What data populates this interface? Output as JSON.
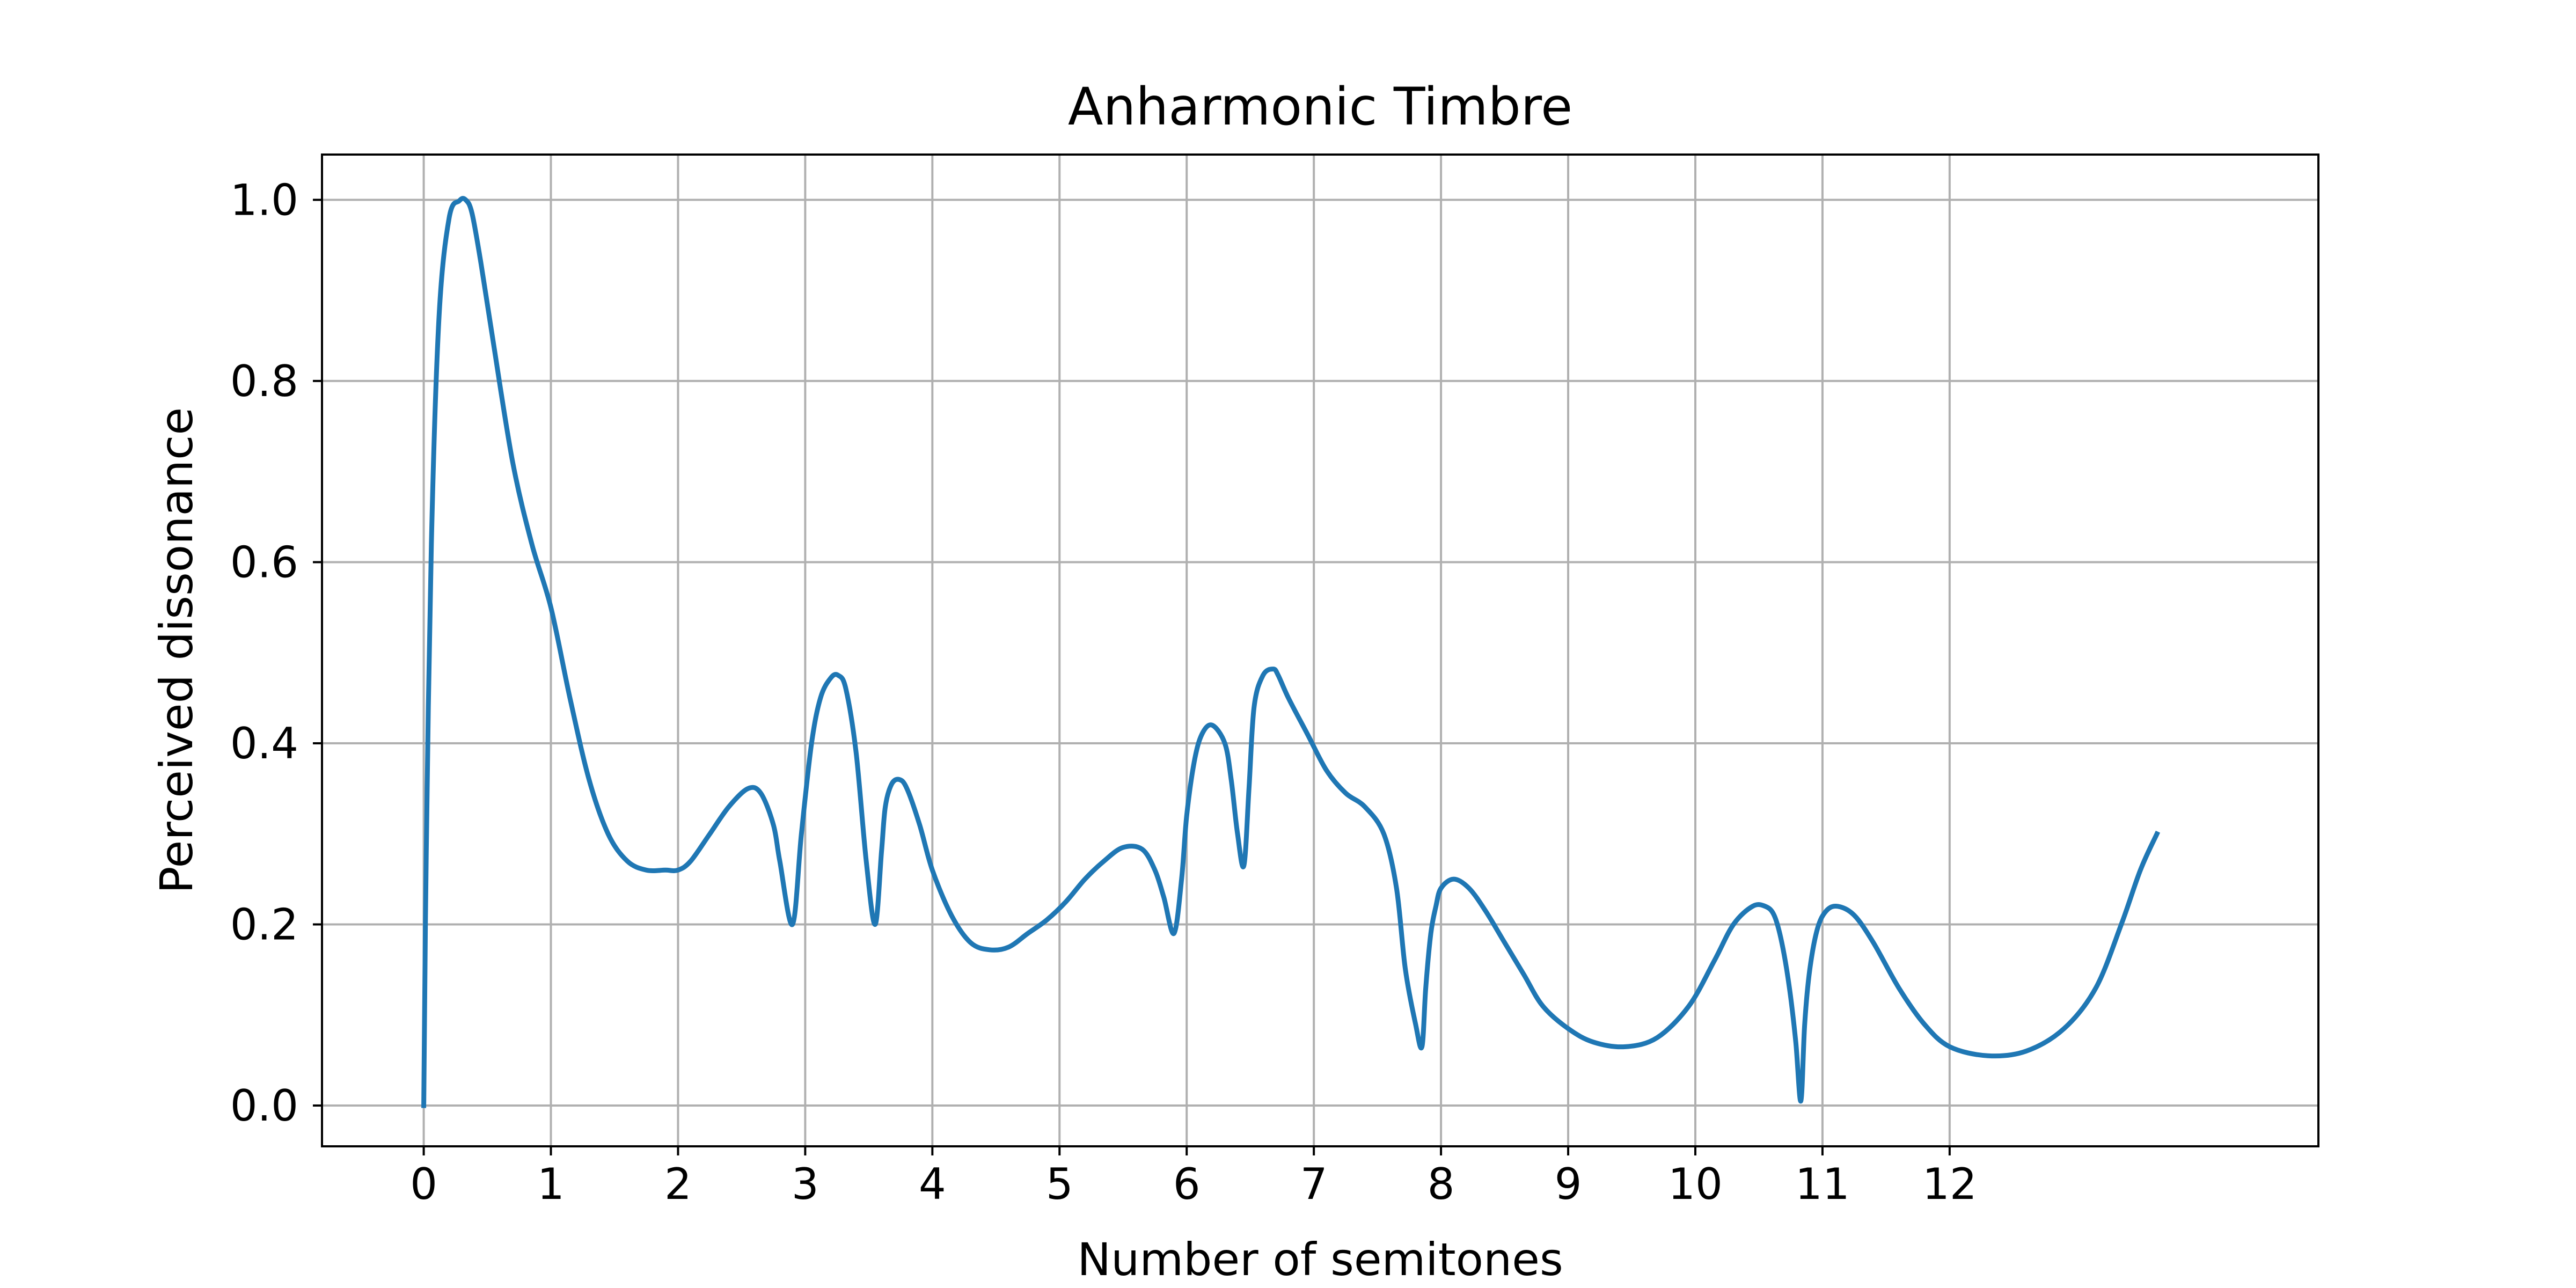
{
  "chart_data": {
    "type": "line",
    "title": "Anharmonic Timbre",
    "xlabel": "Number of semitones",
    "ylabel": "Perceived dissonance",
    "xlim": [
      -0.8,
      14.9
    ],
    "ylim": [
      -0.045,
      1.05
    ],
    "grid": true,
    "xticks": [
      0,
      1,
      2,
      3,
      4,
      5,
      6,
      7,
      8,
      9,
      10,
      11,
      12
    ],
    "xtick_labels": [
      "0",
      "1",
      "2",
      "3",
      "4",
      "5",
      "6",
      "7",
      "8",
      "9",
      "10",
      "11",
      "12"
    ],
    "yticks": [
      0.0,
      0.2,
      0.4,
      0.6,
      0.8,
      1.0
    ],
    "ytick_labels": [
      "0.0",
      "0.2",
      "0.4",
      "0.6",
      "0.8",
      "1.0"
    ],
    "line_color": "#1f77b4",
    "series": [
      {
        "x": [
          0.0,
          0.02,
          0.06,
          0.12,
          0.2,
          0.28,
          0.33,
          0.38,
          0.45,
          0.55,
          0.7,
          0.85,
          1.0,
          1.15,
          1.3,
          1.45,
          1.6,
          1.75,
          1.9,
          2.0,
          2.1,
          2.25,
          2.4,
          2.55,
          2.65,
          2.75,
          2.8,
          2.9,
          2.97,
          3.05,
          3.12,
          3.2,
          3.26,
          3.32,
          3.4,
          3.48,
          3.55,
          3.6,
          3.63,
          3.68,
          3.74,
          3.8,
          3.9,
          4.0,
          4.15,
          4.3,
          4.45,
          4.6,
          4.75,
          4.9,
          5.05,
          5.2,
          5.35,
          5.5,
          5.65,
          5.75,
          5.82,
          5.9,
          5.96,
          6.0,
          6.06,
          6.12,
          6.2,
          6.3,
          6.35,
          6.4,
          6.45,
          6.49,
          6.53,
          6.6,
          6.68,
          6.72,
          6.8,
          6.95,
          7.1,
          7.25,
          7.4,
          7.55,
          7.65,
          7.72,
          7.8,
          7.85,
          7.88,
          7.92,
          7.96,
          8.0,
          8.1,
          8.22,
          8.35,
          8.5,
          8.65,
          8.8,
          9.0,
          9.2,
          9.45,
          9.7,
          9.95,
          10.15,
          10.3,
          10.45,
          10.55,
          10.62,
          10.68,
          10.74,
          10.79,
          10.83,
          10.86,
          10.9,
          10.96,
          11.03,
          11.12,
          11.25,
          11.4,
          11.6,
          11.8,
          12.0,
          12.3,
          12.6,
          12.9,
          13.15,
          13.35,
          13.5,
          13.63
        ],
        "y": [
          0.0,
          0.28,
          0.62,
          0.87,
          0.98,
          0.999,
          1.0,
          0.985,
          0.93,
          0.84,
          0.71,
          0.62,
          0.55,
          0.45,
          0.36,
          0.3,
          0.27,
          0.26,
          0.26,
          0.26,
          0.27,
          0.3,
          0.33,
          0.35,
          0.345,
          0.31,
          0.27,
          0.2,
          0.3,
          0.4,
          0.45,
          0.472,
          0.475,
          0.46,
          0.39,
          0.27,
          0.2,
          0.28,
          0.33,
          0.355,
          0.36,
          0.35,
          0.31,
          0.26,
          0.21,
          0.18,
          0.172,
          0.175,
          0.19,
          0.205,
          0.225,
          0.25,
          0.27,
          0.285,
          0.283,
          0.26,
          0.23,
          0.19,
          0.25,
          0.32,
          0.38,
          0.41,
          0.42,
          0.4,
          0.36,
          0.3,
          0.265,
          0.35,
          0.44,
          0.475,
          0.482,
          0.475,
          0.45,
          0.41,
          0.37,
          0.345,
          0.33,
          0.3,
          0.24,
          0.15,
          0.09,
          0.065,
          0.13,
          0.19,
          0.22,
          0.24,
          0.25,
          0.24,
          0.215,
          0.18,
          0.145,
          0.11,
          0.085,
          0.07,
          0.065,
          0.075,
          0.11,
          0.16,
          0.2,
          0.22,
          0.22,
          0.21,
          0.18,
          0.13,
          0.07,
          0.005,
          0.09,
          0.15,
          0.195,
          0.215,
          0.22,
          0.21,
          0.18,
          0.13,
          0.09,
          0.065,
          0.055,
          0.06,
          0.085,
          0.13,
          0.2,
          0.26,
          0.3
        ]
      }
    ]
  }
}
